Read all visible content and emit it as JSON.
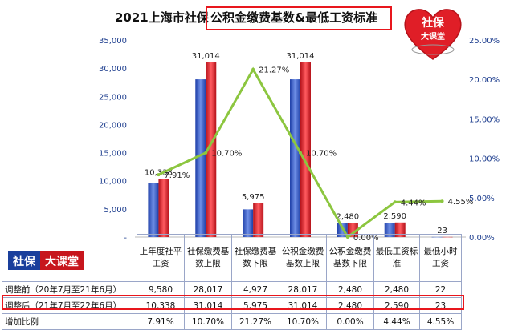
{
  "chart_data": {
    "type": "bar",
    "title_prefix": "2021上海市社保",
    "title_highlight": "公积金缴费基数&最低工资标准",
    "categories": [
      "上年度社平工资",
      "社保缴费基数上限",
      "社保缴费基数下限",
      "公积金缴费基数上限",
      "公积金缴费基数下限",
      "最低工资标准",
      "最低小时工资"
    ],
    "left_ticks": [
      "35,000",
      "30,000",
      "25,000",
      "20,000",
      "15,000",
      "10,000",
      "5,000",
      "-"
    ],
    "right_ticks": [
      "25.00%",
      "20.00%",
      "15.00%",
      "10.00%",
      "5.00%",
      "0.00%"
    ],
    "ylim": [
      0,
      35000
    ],
    "y2lim": [
      0,
      25
    ],
    "series": [
      {
        "name": "调整前",
        "values": [
          9580,
          28017,
          4927,
          28017,
          2480,
          2480,
          22
        ],
        "color": "#2f57c8"
      },
      {
        "name": "调整后",
        "values": [
          10338,
          31014,
          5975,
          31014,
          2480,
          2590,
          23
        ],
        "color": "#d9232a"
      },
      {
        "name": "增加比例",
        "values": [
          7.91,
          10.7,
          21.27,
          10.7,
          0.0,
          4.44,
          4.55
        ],
        "color": "#8cc63f"
      }
    ],
    "bar_labels": [
      "10,338",
      "31,014",
      "5,975",
      "31,014",
      "2,480",
      "2,590",
      "23"
    ],
    "pct_labels": [
      "7.91%",
      "10.70%",
      "21.27%",
      "10.70%",
      "0.00%",
      "4.44%",
      "4.55%"
    ]
  },
  "logo": {
    "line1": "社保",
    "line2": "大课堂"
  },
  "badge": {
    "part1": "社保",
    "part2": "大课堂"
  },
  "table": {
    "headers": [
      "上年度社平工资",
      "社保缴费基数上限",
      "社保缴费基数下限",
      "公积金缴费基数上限",
      "公积金缴费基数下限",
      "最低工资标准",
      "最低小时工资"
    ],
    "rows": [
      {
        "label": "调整前（20年7月至21年6月）",
        "cells": [
          "9,580",
          "28,017",
          "4,927",
          "28,017",
          "2,480",
          "2,480",
          "22"
        ]
      },
      {
        "label": "调整后（21年7月至22年6月）",
        "cells": [
          "10,338",
          "31,014",
          "5,975",
          "31,014",
          "2,480",
          "2,590",
          "23"
        ]
      },
      {
        "label": "增加比例",
        "cells": [
          "7.91%",
          "10.70%",
          "21.27%",
          "10.70%",
          "0.00%",
          "4.44%",
          "4.55%"
        ]
      }
    ]
  }
}
